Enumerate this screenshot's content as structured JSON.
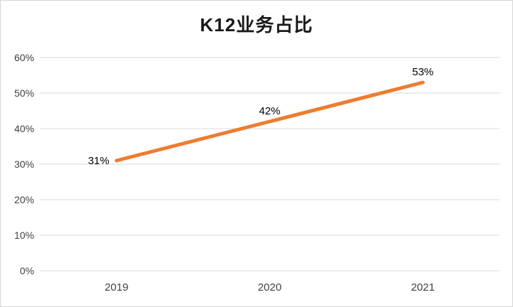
{
  "chart_data": {
    "type": "line",
    "title": "K12业务占比",
    "categories": [
      "2019",
      "2020",
      "2021"
    ],
    "series": [
      {
        "name": "K12业务占比",
        "values": [
          31,
          42,
          53
        ]
      }
    ],
    "data_labels": [
      "31%",
      "42%",
      "53%"
    ],
    "ylim": [
      0,
      60
    ],
    "ytick_step": 10,
    "ytick_labels": [
      "0%",
      "10%",
      "20%",
      "30%",
      "40%",
      "50%",
      "60%"
    ],
    "grid": "horizontal",
    "legend": "none",
    "label_positions": [
      "left",
      "above",
      "above"
    ],
    "colors": {
      "line": "#ED7D31",
      "grid": "#D9D9D9",
      "axis_text": "#404040",
      "data_label_text": "#000000"
    }
  }
}
